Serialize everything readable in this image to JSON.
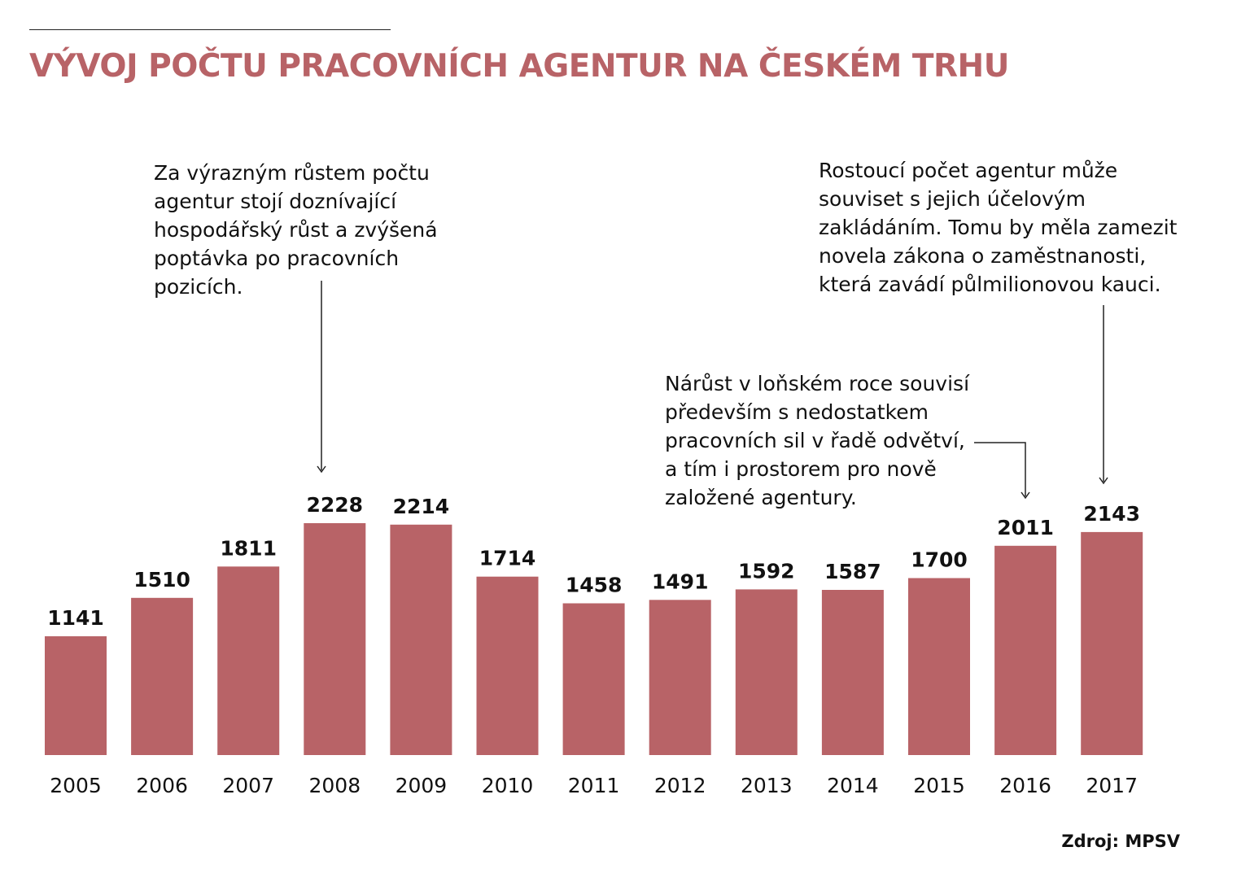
{
  "colors": {
    "bar": "#b86367",
    "title": "#b86367",
    "text": "#111111"
  },
  "title": "VÝVOJ POČTU PRACOVNÍCH AGENTUR NA ČESKÉM TRHU",
  "annotations": {
    "growth_2008": [
      "Za výrazným růstem počtu",
      "agentur stojí doznívající",
      "hospodářský růst a zvýšená",
      "poptávka po pracovních",
      "pozicích."
    ],
    "rise_2016": [
      "Nárůst v loňském roce souvisí",
      "především s nedostatkem",
      "pracovních sil v řadě odvětví,",
      "a tím i prostorem pro nově",
      "založené agentury."
    ],
    "rise_2017": [
      "Rostoucí počet agentur může",
      "souviset s jejich účelovým",
      "zakládáním. Tomu by měla zamezit",
      "novela zákona o zaměstnanosti,",
      "která zavádí půlmilionovou kauci."
    ]
  },
  "source": "Zdroj: MPSV",
  "chart_data": {
    "type": "bar",
    "title": "VÝVOJ POČTU PRACOVNÍCH AGENTUR NA ČESKÉM TRHU",
    "xlabel": "",
    "ylabel": "",
    "categories": [
      "2005",
      "2006",
      "2007",
      "2008",
      "2009",
      "2010",
      "2011",
      "2012",
      "2013",
      "2014",
      "2015",
      "2016",
      "2017"
    ],
    "values": [
      1141,
      1510,
      1811,
      2228,
      2214,
      1714,
      1458,
      1491,
      1592,
      1587,
      1700,
      2011,
      2143
    ],
    "ylim": [
      0,
      2228
    ],
    "grid": false,
    "legend": "none",
    "data_labels": true
  }
}
